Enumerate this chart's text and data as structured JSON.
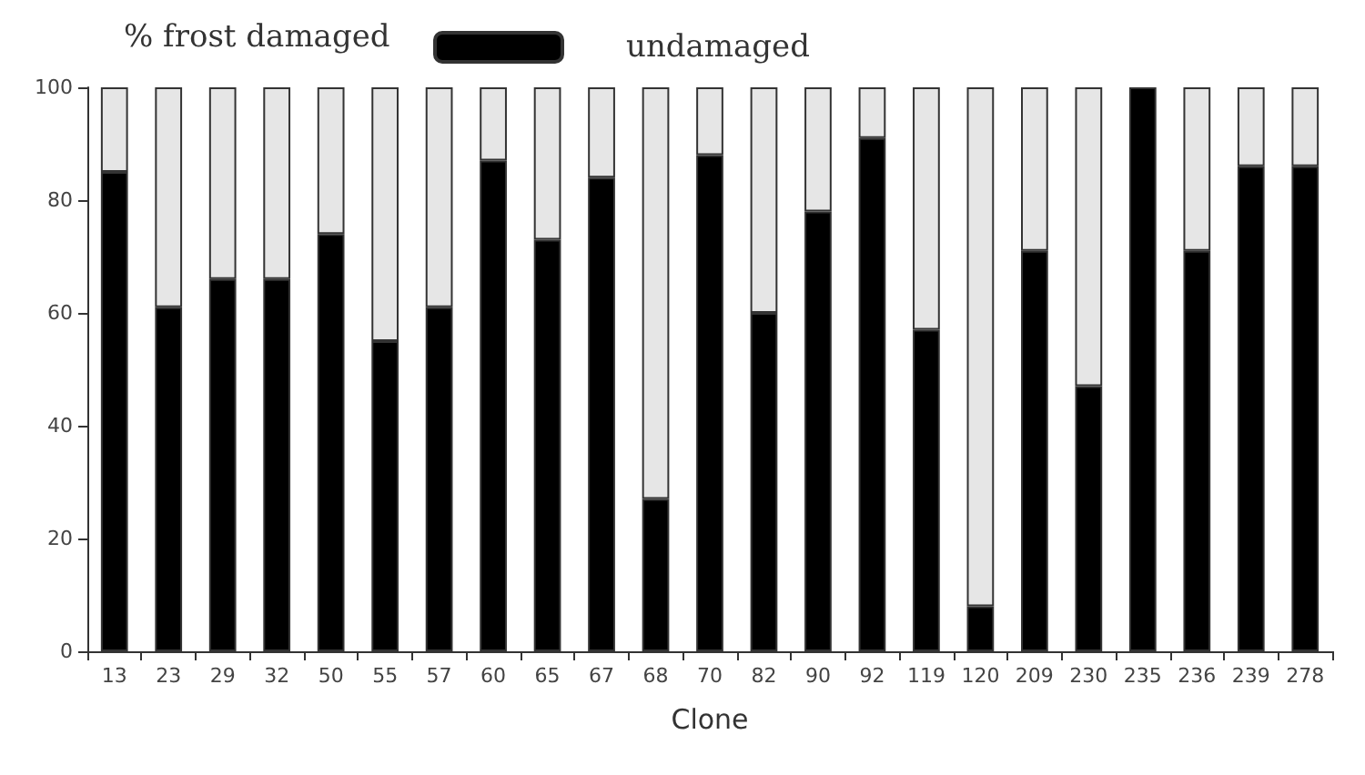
{
  "chart_data": {
    "type": "bar",
    "stacked": true,
    "legend_title": "% frost damaged",
    "legend": "top left",
    "grid": false,
    "xlabel": "Clone",
    "categories": [
      "13",
      "23",
      "29",
      "32",
      "50",
      "55",
      "57",
      "60",
      "65",
      "67",
      "68",
      "70",
      "82",
      "90",
      "92",
      "119",
      "120",
      "209",
      "230",
      "235",
      "236",
      "239",
      "278"
    ],
    "series": [
      {
        "name": "undamaged",
        "color": "#000000",
        "values": [
          85,
          61,
          66,
          66,
          74,
          55,
          61,
          87,
          73,
          84,
          27,
          88,
          60,
          78,
          91,
          57,
          8,
          71,
          47,
          100,
          71,
          86,
          86
        ]
      },
      {
        "color": "#e6e6e6",
        "values": [
          15,
          39,
          34,
          34,
          26,
          45,
          39,
          13,
          27,
          16,
          73,
          12,
          40,
          22,
          9,
          43,
          92,
          29,
          53,
          0,
          29,
          14,
          14
        ]
      }
    ],
    "ylim": [
      0,
      100
    ],
    "yticks": [
      0,
      20,
      40,
      60,
      80,
      100
    ]
  }
}
